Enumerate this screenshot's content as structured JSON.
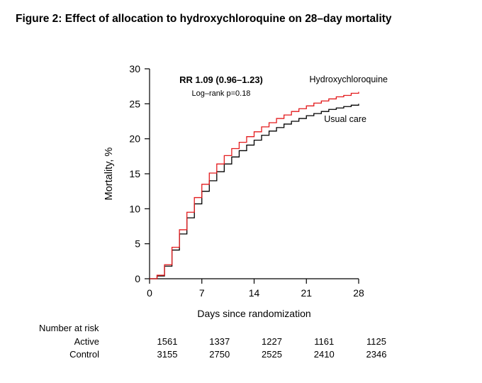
{
  "page": {
    "title": "Figure 2: Effect of allocation to hydroxychloroquine on 28–day mortality"
  },
  "chart_data": {
    "type": "line",
    "subtype": "step",
    "title": "",
    "xlabel": "Days since randomization",
    "ylabel": "Mortality, %",
    "xlim": [
      0,
      28
    ],
    "ylim": [
      0,
      30
    ],
    "xticks": [
      0,
      7,
      14,
      21,
      28
    ],
    "yticks": [
      0,
      5,
      10,
      15,
      20,
      25,
      30
    ],
    "grid": false,
    "legend_position": "inline-labels",
    "annotations": [
      {
        "text": "RR 1.09 (0.96–1.23)"
      },
      {
        "text": "Log–rank p=0.18"
      }
    ],
    "series": [
      {
        "name": "Hydroxychloroquine",
        "color": "#e31a1c",
        "x": [
          0,
          1,
          2,
          3,
          4,
          5,
          6,
          7,
          8,
          9,
          10,
          11,
          12,
          13,
          14,
          15,
          16,
          17,
          18,
          19,
          20,
          21,
          22,
          23,
          24,
          25,
          26,
          27,
          28
        ],
        "y": [
          0,
          0.5,
          2,
          4.5,
          7,
          9.5,
          11.6,
          13.5,
          15.1,
          16.4,
          17.6,
          18.6,
          19.5,
          20.3,
          21,
          21.7,
          22.3,
          22.9,
          23.4,
          23.9,
          24.3,
          24.7,
          25.1,
          25.4,
          25.7,
          26,
          26.2,
          26.5,
          26.7
        ]
      },
      {
        "name": "Usual care",
        "color": "#000000",
        "x": [
          0,
          1,
          2,
          3,
          4,
          5,
          6,
          7,
          8,
          9,
          10,
          11,
          12,
          13,
          14,
          15,
          16,
          17,
          18,
          19,
          20,
          21,
          22,
          23,
          24,
          25,
          26,
          27,
          28
        ],
        "y": [
          0,
          0.4,
          1.8,
          4.1,
          6.4,
          8.7,
          10.7,
          12.5,
          14,
          15.3,
          16.4,
          17.4,
          18.3,
          19.1,
          19.8,
          20.5,
          21.1,
          21.6,
          22.1,
          22.5,
          22.9,
          23.3,
          23.6,
          23.9,
          24.2,
          24.4,
          24.6,
          24.8,
          25
        ]
      }
    ],
    "number_at_risk": {
      "title": "Number at risk",
      "timepoints": [
        0,
        7,
        14,
        21,
        28
      ],
      "rows": [
        {
          "label": "Active",
          "color": "#e31a1c",
          "values": [
            "1561",
            "1337",
            "1227",
            "1161",
            "1125"
          ]
        },
        {
          "label": "Control",
          "color": "#000000",
          "values": [
            "3155",
            "2750",
            "2525",
            "2410",
            "2346"
          ]
        }
      ]
    }
  }
}
